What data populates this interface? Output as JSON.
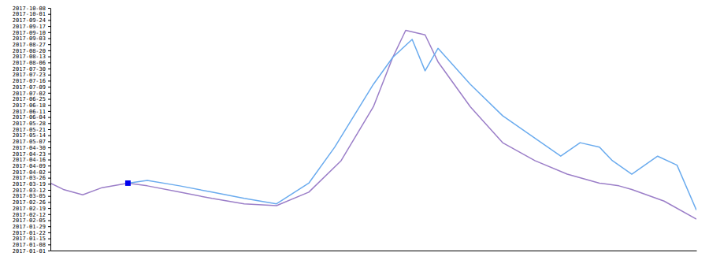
{
  "chart_data": {
    "type": "line",
    "series": [
      {
        "color": "#9B7EC8",
        "x": [
          0,
          2,
          5,
          8,
          12,
          15,
          20,
          25,
          30,
          35,
          40,
          45,
          50,
          53,
          55,
          58,
          60,
          65,
          70,
          75,
          80,
          85,
          88,
          90,
          95,
          100
        ],
        "values": [
          5.5,
          4.8,
          4.2,
          5.0,
          5.5,
          5.2,
          4.5,
          3.8,
          3.2,
          3.0,
          4.5,
          8.0,
          14.0,
          19.5,
          22.5,
          22.0,
          19.0,
          14.0,
          10.0,
          8.0,
          6.5,
          5.5,
          5.2,
          4.8,
          3.5,
          1.5
        ]
      },
      {
        "color": "#6AABEE",
        "x": [
          12,
          15,
          20,
          25,
          30,
          35,
          40,
          44,
          47,
          50,
          53,
          56,
          58,
          60,
          65,
          70,
          75,
          79,
          82,
          85,
          87,
          90,
          94,
          97,
          100
        ],
        "values": [
          5.5,
          5.8,
          5.2,
          4.5,
          3.8,
          3.2,
          5.5,
          9.5,
          13.0,
          16.5,
          19.5,
          21.5,
          18.0,
          20.5,
          16.5,
          13.0,
          10.5,
          8.5,
          10.0,
          9.5,
          8.0,
          6.5,
          8.5,
          7.5,
          2.5
        ]
      },
      {
        "type": "scatter",
        "marker": "square",
        "color": "#0000EE",
        "x": [
          12
        ],
        "values": [
          5.5
        ]
      }
    ],
    "xlim": [
      0,
      100
    ],
    "xticks": [],
    "ylim": [
      -2,
      25
    ],
    "yticks": [
      {
        "value": -2,
        "label": "2017-01-01"
      },
      {
        "value": -1.325,
        "label": "2017-01-08"
      },
      {
        "value": -0.65,
        "label": "2017-01-15"
      },
      {
        "value": 0.025,
        "label": "2017-01-22"
      },
      {
        "value": 0.7,
        "label": "2017-01-29"
      },
      {
        "value": 1.375,
        "label": "2017-02-05"
      },
      {
        "value": 2.05,
        "label": "2017-02-12"
      },
      {
        "value": 2.725,
        "label": "2017-02-19"
      },
      {
        "value": 3.4,
        "label": "2017-02-26"
      },
      {
        "value": 4.075,
        "label": "2017-03-05"
      },
      {
        "value": 4.75,
        "label": "2017-03-12"
      },
      {
        "value": 5.425,
        "label": "2017-03-19"
      },
      {
        "value": 6.1,
        "label": "2017-03-26"
      },
      {
        "value": 6.775,
        "label": "2017-04-02"
      },
      {
        "value": 7.45,
        "label": "2017-04-09"
      },
      {
        "value": 8.125,
        "label": "2017-04-16"
      },
      {
        "value": 8.8,
        "label": "2017-04-23"
      },
      {
        "value": 9.475,
        "label": "2017-04-30"
      },
      {
        "value": 10.15,
        "label": "2017-05-07"
      },
      {
        "value": 10.825,
        "label": "2017-05-14"
      },
      {
        "value": 11.5,
        "label": "2017-05-21"
      },
      {
        "value": 12.175,
        "label": "2017-05-28"
      },
      {
        "value": 12.85,
        "label": "2017-06-04"
      },
      {
        "value": 13.525,
        "label": "2017-06-11"
      },
      {
        "value": 14.2,
        "label": "2017-06-18"
      },
      {
        "value": 14.875,
        "label": "2017-06-25"
      },
      {
        "value": 15.55,
        "label": "2017-07-02"
      },
      {
        "value": 16.225,
        "label": "2017-07-09"
      },
      {
        "value": 16.9,
        "label": "2017-07-16"
      },
      {
        "value": 17.575,
        "label": "2017-07-23"
      },
      {
        "value": 18.25,
        "label": "2017-07-30"
      },
      {
        "value": 18.925,
        "label": "2017-08-06"
      },
      {
        "value": 19.6,
        "label": "2017-08-13"
      },
      {
        "value": 20.275,
        "label": "2017-08-20"
      },
      {
        "value": 20.95,
        "label": "2017-08-27"
      },
      {
        "value": 21.625,
        "label": "2017-09-03"
      },
      {
        "value": 22.3,
        "label": "2017-09-10"
      },
      {
        "value": 22.975,
        "label": "2017-09-17"
      },
      {
        "value": 23.65,
        "label": "2017-09-24"
      },
      {
        "value": 24.325,
        "label": "2017-10-01"
      },
      {
        "value": 25,
        "label": "2017-10-08"
      }
    ],
    "grid": false,
    "tick_labels": "y"
  }
}
